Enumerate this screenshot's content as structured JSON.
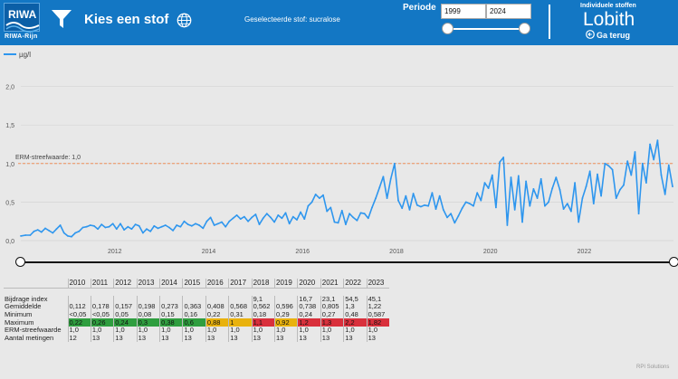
{
  "header": {
    "logo_text": "RIWA",
    "logo_sub": "RIWA-Rijn",
    "title": "Kies een stof",
    "selected_substance": "Geselecteerde stof: sucralose",
    "period_label": "Periode",
    "year_from": "1999",
    "year_to": "2024",
    "individual_label": "Individuele stoffen",
    "location": "Lobith",
    "back_label": "Ga terug",
    "icons": {
      "filter": "filter-icon",
      "globe": "globe-icon",
      "back": "back-arrow-icon"
    }
  },
  "chart_data": {
    "type": "line",
    "series_name": "µg/l",
    "line_color": "#2e96ee",
    "y_ticks": [
      "0,0",
      "0,5",
      "1,0",
      "1,5",
      "2,0"
    ],
    "ylim": [
      0,
      2.3
    ],
    "x_ticks": [
      "2012",
      "2014",
      "2016",
      "2018",
      "2020",
      "2022"
    ],
    "xlim": [
      2010.0,
      2023.9
    ],
    "reference_line": {
      "label": "ERM-streefwaarde: 1,0",
      "value": 1.0,
      "color": "#f0905a"
    },
    "points": [
      [
        2010.0,
        0.06
      ],
      [
        2010.1,
        0.07
      ],
      [
        2010.2,
        0.07
      ],
      [
        2010.28,
        0.12
      ],
      [
        2010.36,
        0.14
      ],
      [
        2010.44,
        0.11
      ],
      [
        2010.52,
        0.16
      ],
      [
        2010.6,
        0.13
      ],
      [
        2010.68,
        0.1
      ],
      [
        2010.76,
        0.15
      ],
      [
        2010.84,
        0.2
      ],
      [
        2010.92,
        0.1
      ],
      [
        2011.0,
        0.06
      ],
      [
        2011.08,
        0.05
      ],
      [
        2011.16,
        0.1
      ],
      [
        2011.24,
        0.12
      ],
      [
        2011.32,
        0.17
      ],
      [
        2011.4,
        0.18
      ],
      [
        2011.48,
        0.2
      ],
      [
        2011.56,
        0.19
      ],
      [
        2011.64,
        0.15
      ],
      [
        2011.72,
        0.21
      ],
      [
        2011.8,
        0.17
      ],
      [
        2011.88,
        0.18
      ],
      [
        2011.96,
        0.22
      ],
      [
        2012.04,
        0.15
      ],
      [
        2012.12,
        0.22
      ],
      [
        2012.2,
        0.14
      ],
      [
        2012.28,
        0.18
      ],
      [
        2012.36,
        0.15
      ],
      [
        2012.44,
        0.21
      ],
      [
        2012.52,
        0.19
      ],
      [
        2012.6,
        0.1
      ],
      [
        2012.68,
        0.15
      ],
      [
        2012.76,
        0.12
      ],
      [
        2012.84,
        0.19
      ],
      [
        2012.92,
        0.16
      ],
      [
        2013.0,
        0.18
      ],
      [
        2013.08,
        0.2
      ],
      [
        2013.16,
        0.17
      ],
      [
        2013.24,
        0.13
      ],
      [
        2013.32,
        0.2
      ],
      [
        2013.4,
        0.18
      ],
      [
        2013.48,
        0.25
      ],
      [
        2013.56,
        0.21
      ],
      [
        2013.64,
        0.19
      ],
      [
        2013.72,
        0.22
      ],
      [
        2013.8,
        0.2
      ],
      [
        2013.88,
        0.16
      ],
      [
        2013.96,
        0.25
      ],
      [
        2014.04,
        0.3
      ],
      [
        2014.12,
        0.2
      ],
      [
        2014.2,
        0.22
      ],
      [
        2014.28,
        0.24
      ],
      [
        2014.36,
        0.18
      ],
      [
        2014.44,
        0.25
      ],
      [
        2014.52,
        0.29
      ],
      [
        2014.6,
        0.33
      ],
      [
        2014.68,
        0.28
      ],
      [
        2014.76,
        0.31
      ],
      [
        2014.84,
        0.25
      ],
      [
        2014.92,
        0.3
      ],
      [
        2015.0,
        0.34
      ],
      [
        2015.08,
        0.21
      ],
      [
        2015.16,
        0.29
      ],
      [
        2015.24,
        0.35
      ],
      [
        2015.32,
        0.3
      ],
      [
        2015.4,
        0.24
      ],
      [
        2015.48,
        0.33
      ],
      [
        2015.56,
        0.29
      ],
      [
        2015.64,
        0.36
      ],
      [
        2015.72,
        0.22
      ],
      [
        2015.8,
        0.31
      ],
      [
        2015.88,
        0.27
      ],
      [
        2015.96,
        0.37
      ],
      [
        2016.04,
        0.28
      ],
      [
        2016.12,
        0.45
      ],
      [
        2016.2,
        0.5
      ],
      [
        2016.28,
        0.6
      ],
      [
        2016.36,
        0.55
      ],
      [
        2016.44,
        0.59
      ],
      [
        2016.52,
        0.38
      ],
      [
        2016.6,
        0.43
      ],
      [
        2016.68,
        0.24
      ],
      [
        2016.76,
        0.23
      ],
      [
        2016.84,
        0.39
      ],
      [
        2016.92,
        0.21
      ],
      [
        2017.0,
        0.35
      ],
      [
        2017.08,
        0.3
      ],
      [
        2017.16,
        0.26
      ],
      [
        2017.24,
        0.36
      ],
      [
        2017.32,
        0.35
      ],
      [
        2017.4,
        0.29
      ],
      [
        2017.48,
        0.43
      ],
      [
        2017.56,
        0.55
      ],
      [
        2017.64,
        0.69
      ],
      [
        2017.72,
        0.83
      ],
      [
        2017.8,
        0.55
      ],
      [
        2017.88,
        0.8
      ],
      [
        2017.96,
        1.0
      ],
      [
        2018.04,
        0.52
      ],
      [
        2018.12,
        0.42
      ],
      [
        2018.2,
        0.58
      ],
      [
        2018.28,
        0.4
      ],
      [
        2018.36,
        0.61
      ],
      [
        2018.44,
        0.46
      ],
      [
        2018.52,
        0.44
      ],
      [
        2018.6,
        0.46
      ],
      [
        2018.68,
        0.45
      ],
      [
        2018.76,
        0.62
      ],
      [
        2018.84,
        0.41
      ],
      [
        2018.92,
        0.58
      ],
      [
        2019.0,
        0.4
      ],
      [
        2019.08,
        0.3
      ],
      [
        2019.16,
        0.35
      ],
      [
        2019.24,
        0.23
      ],
      [
        2019.32,
        0.32
      ],
      [
        2019.4,
        0.42
      ],
      [
        2019.48,
        0.5
      ],
      [
        2019.56,
        0.48
      ],
      [
        2019.64,
        0.45
      ],
      [
        2019.72,
        0.62
      ],
      [
        2019.8,
        0.52
      ],
      [
        2019.88,
        0.75
      ],
      [
        2019.96,
        0.68
      ],
      [
        2020.04,
        0.85
      ],
      [
        2020.12,
        0.43
      ],
      [
        2020.2,
        1.02
      ],
      [
        2020.28,
        1.08
      ],
      [
        2020.36,
        0.2
      ],
      [
        2020.44,
        0.82
      ],
      [
        2020.52,
        0.4
      ],
      [
        2020.6,
        0.84
      ],
      [
        2020.68,
        0.24
      ],
      [
        2020.76,
        0.77
      ],
      [
        2020.84,
        0.45
      ],
      [
        2020.92,
        0.67
      ],
      [
        2021.0,
        0.55
      ],
      [
        2021.08,
        0.8
      ],
      [
        2021.16,
        0.45
      ],
      [
        2021.24,
        0.5
      ],
      [
        2021.32,
        0.68
      ],
      [
        2021.4,
        0.82
      ],
      [
        2021.48,
        0.66
      ],
      [
        2021.56,
        0.41
      ],
      [
        2021.64,
        0.48
      ],
      [
        2021.72,
        0.38
      ],
      [
        2021.8,
        0.75
      ],
      [
        2021.88,
        0.24
      ],
      [
        2021.96,
        0.55
      ],
      [
        2022.04,
        0.7
      ],
      [
        2022.12,
        0.9
      ],
      [
        2022.2,
        0.48
      ],
      [
        2022.28,
        0.86
      ],
      [
        2022.36,
        0.58
      ],
      [
        2022.44,
        1.0
      ],
      [
        2022.52,
        0.97
      ],
      [
        2022.6,
        0.92
      ],
      [
        2022.68,
        0.55
      ],
      [
        2022.76,
        0.66
      ],
      [
        2022.84,
        0.72
      ],
      [
        2022.92,
        1.03
      ],
      [
        2023.0,
        0.85
      ],
      [
        2023.08,
        1.15
      ],
      [
        2023.16,
        0.35
      ],
      [
        2023.24,
        1.0
      ],
      [
        2023.32,
        0.75
      ],
      [
        2023.4,
        1.25
      ],
      [
        2023.48,
        1.05
      ],
      [
        2023.56,
        1.3
      ],
      [
        2023.64,
        0.85
      ],
      [
        2023.72,
        0.6
      ],
      [
        2023.8,
        0.98
      ],
      [
        2023.88,
        0.7
      ]
    ]
  },
  "table": {
    "years": [
      "2010",
      "2011",
      "2012",
      "2013",
      "2014",
      "2015",
      "2016",
      "2017",
      "2018",
      "2019",
      "2020",
      "2021",
      "2022",
      "2023"
    ],
    "rows": [
      {
        "label": "Bijdrage index",
        "values": [
          "",
          "",
          "",
          "",
          "",
          "",
          "",
          "",
          "9,1",
          "",
          "16,7",
          "23,1",
          "54,5",
          "45,1"
        ]
      },
      {
        "label": "Gemiddelde",
        "values": [
          "0,112",
          "0,178",
          "0,157",
          "0,198",
          "0,273",
          "0,363",
          "0,408",
          "0,568",
          "0,562",
          "0,596",
          "0,738",
          "0,805",
          "1,3",
          "1,22"
        ]
      },
      {
        "label": "Minimum",
        "values": [
          "<0,05",
          "<0,05",
          "0,05",
          "0,08",
          "0,15",
          "0,16",
          "0,22",
          "0,31",
          "0,18",
          "0,29",
          "0,24",
          "0,27",
          "0,48",
          "0,587"
        ]
      },
      {
        "label": "Maximum",
        "values": [
          "0,22",
          "0,26",
          "0,24",
          "0,3",
          "0,38",
          "0,6",
          "0,88",
          "1",
          "1,1",
          "0,92",
          "1,2",
          "1,3",
          "2,2",
          "1,82"
        ],
        "colors": [
          "#2f9e3f",
          "#2f9e3f",
          "#2f9e3f",
          "#2f9e3f",
          "#2f9e3f",
          "#2f9e3f",
          "#e9b20e",
          "#e9b20e",
          "#d9303c",
          "#e9b20e",
          "#d9303c",
          "#d9303c",
          "#d9303c",
          "#d9303c"
        ]
      },
      {
        "label": "ERM-streefwaarde",
        "values": [
          "1,0",
          "1,0",
          "1,0",
          "1,0",
          "1,0",
          "1,0",
          "1,0",
          "1,0",
          "1,0",
          "1,0",
          "1,0",
          "1,0",
          "1,0",
          "1,0"
        ]
      },
      {
        "label": "Aantal metingen",
        "values": [
          "12",
          "13",
          "13",
          "13",
          "13",
          "13",
          "13",
          "13",
          "13",
          "13",
          "13",
          "13",
          "13",
          "13"
        ]
      }
    ]
  },
  "footer": {
    "brand": "RPI Solutions"
  }
}
